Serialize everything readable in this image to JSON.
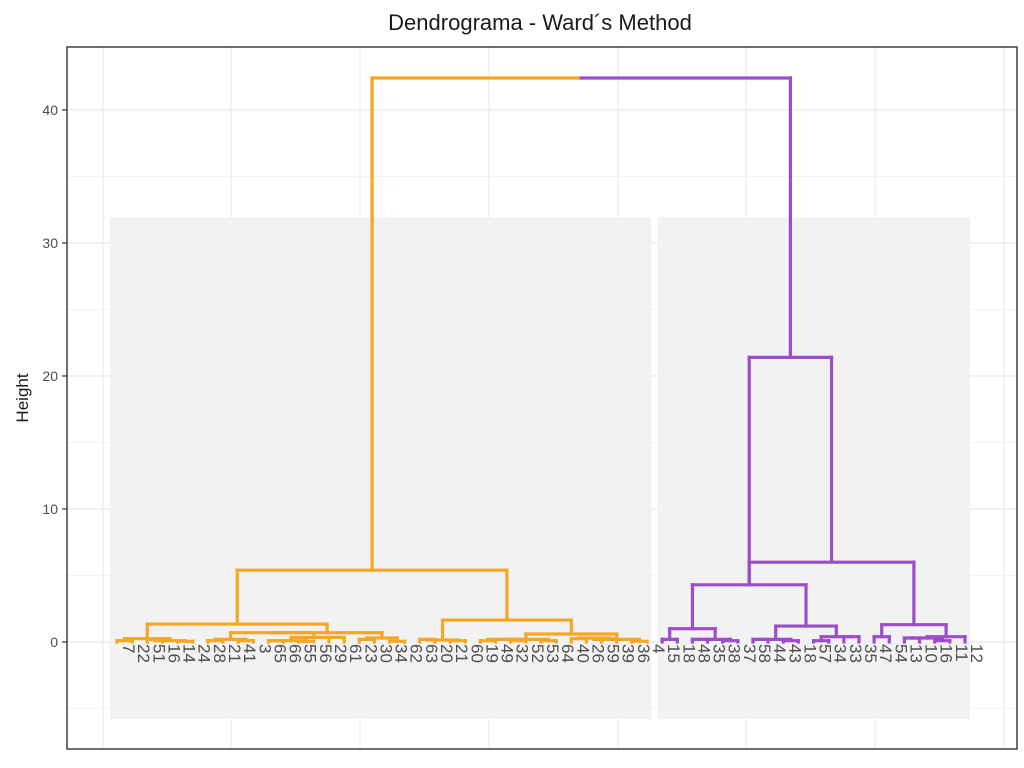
{
  "chart_data": {
    "type": "dendrogram",
    "title": "Dendrograma - Ward´s Method",
    "ylabel": "Height",
    "xlabel": "",
    "ylim": [
      -8,
      44
    ],
    "yticks": [
      0,
      10,
      20,
      30,
      40
    ],
    "grid": true,
    "colors": {
      "cluster1": "#F5A623",
      "cluster2": "#9B4DCA",
      "rect": "#F2F2F2",
      "grid": "#EBEBEB"
    },
    "leaves": [
      "7",
      "22",
      "51",
      "16",
      "14",
      "24",
      "28",
      "21",
      "41",
      "3",
      "65",
      "66",
      "55",
      "56",
      "29",
      "61",
      "23",
      "30",
      "34",
      "62",
      "63",
      "20",
      "21",
      "60",
      "19",
      "49",
      "32",
      "52",
      "53",
      "64",
      "40",
      "26",
      "59",
      "39",
      "36",
      "4",
      "15",
      "18",
      "48",
      "35",
      "38",
      "37",
      "58",
      "44",
      "43",
      "18",
      "57",
      "34",
      "33",
      "35",
      "47",
      "54",
      "13",
      "10",
      "16",
      "11",
      "12"
    ],
    "leaf_clusters": [
      1,
      1,
      1,
      1,
      1,
      1,
      1,
      1,
      1,
      1,
      1,
      1,
      1,
      1,
      1,
      1,
      1,
      1,
      1,
      1,
      1,
      1,
      1,
      1,
      1,
      1,
      1,
      1,
      1,
      1,
      1,
      1,
      1,
      1,
      1,
      1,
      2,
      2,
      2,
      2,
      2,
      2,
      2,
      2,
      2,
      2,
      2,
      2,
      2,
      2,
      2,
      2,
      2,
      2,
      2,
      2,
      2
    ],
    "merges": [
      {
        "left": 0,
        "right": 1,
        "height": 0.1
      },
      {
        "left": 2,
        "right": 3,
        "height": 0.2
      },
      {
        "left": 4,
        "right": 5,
        "height": 0.05
      },
      {
        "left": -2,
        "right": -3,
        "height": 0.1
      },
      {
        "left": -1,
        "right": -4,
        "height": 0.25
      },
      {
        "left": 6,
        "right": 7,
        "height": 0.1
      },
      {
        "left": 8,
        "right": 9,
        "height": 0.1
      },
      {
        "left": -6,
        "right": -7,
        "height": 0.2
      },
      {
        "left": 10,
        "right": 11,
        "height": 0.1
      },
      {
        "left": 12,
        "right": 13,
        "height": 0.05
      },
      {
        "left": -9,
        "right": -10,
        "height": 0.1
      },
      {
        "left": 14,
        "right": 15,
        "height": 0.35
      },
      {
        "left": -11,
        "right": -12,
        "height": 0.35
      },
      {
        "left": -8,
        "right": -13,
        "height": 0.7
      },
      {
        "left": 16,
        "right": 17,
        "height": 0.2
      },
      {
        "left": 18,
        "right": 19,
        "height": 0.05
      },
      {
        "left": -15,
        "right": -16,
        "height": 0.3
      },
      {
        "left": -14,
        "right": -17,
        "height": 0.7
      },
      {
        "left": -5,
        "right": -18,
        "height": 1.35
      },
      {
        "left": 20,
        "right": 21,
        "height": 0.2
      },
      {
        "left": 22,
        "right": 23,
        "height": 0.1
      },
      {
        "left": -20,
        "right": -21,
        "height": 0.15
      },
      {
        "left": 24,
        "right": 25,
        "height": 0.1
      },
      {
        "left": 26,
        "right": 27,
        "height": 0.1
      },
      {
        "left": -23,
        "right": -24,
        "height": 0.2
      },
      {
        "left": 28,
        "right": 29,
        "height": 0.1
      },
      {
        "left": -25,
        "right": -26,
        "height": 0.2
      },
      {
        "left": 30,
        "right": 31,
        "height": 0.25
      },
      {
        "left": 32,
        "right": 33,
        "height": 0.25
      },
      {
        "left": -28,
        "right": -29,
        "height": 0.3
      },
      {
        "left": 34,
        "right": 35,
        "height": 0.05
      },
      {
        "left": -30,
        "right": -31,
        "height": 0.2
      },
      {
        "left": -27,
        "right": -32,
        "height": 0.6
      },
      {
        "left": -22,
        "right": -33,
        "height": 1.65
      },
      {
        "left": -19,
        "right": -34,
        "height": 5.4
      },
      {
        "left": 36,
        "right": 37,
        "height": 0.2
      },
      {
        "left": 38,
        "right": 39,
        "height": 0.2
      },
      {
        "left": 40,
        "right": 41,
        "height": 0.1
      },
      {
        "left": -37,
        "right": -38,
        "height": 0.2
      },
      {
        "left": -36,
        "right": -39,
        "height": 1.0
      },
      {
        "left": 42,
        "right": 43,
        "height": 0.2
      },
      {
        "left": 44,
        "right": 45,
        "height": 0.1
      },
      {
        "left": -41,
        "right": -42,
        "height": 0.2
      },
      {
        "left": 46,
        "right": 47,
        "height": 0.1
      },
      {
        "left": 48,
        "right": 49,
        "height": 0.4
      },
      {
        "left": -44,
        "right": -45,
        "height": 0.4
      },
      {
        "left": -43,
        "right": -46,
        "height": 1.2
      },
      {
        "left": -40,
        "right": -47,
        "height": 4.3
      },
      {
        "left": 50,
        "right": 51,
        "height": 0.4
      },
      {
        "left": 52,
        "right": 53,
        "height": 0.3
      },
      {
        "left": 54,
        "right": 55,
        "height": 0.1
      },
      {
        "left": -50,
        "right": -51,
        "height": 0.3
      },
      {
        "left": -52,
        "right": 56,
        "height": 0.4
      },
      {
        "left": -49,
        "right": -53,
        "height": 1.3
      },
      {
        "left": -48,
        "right": -54,
        "height": 6.0
      },
      {
        "left": -48,
        "right": -55,
        "height": 21.4
      },
      {
        "left": -35,
        "right": -56,
        "height": 42.4
      }
    ]
  }
}
